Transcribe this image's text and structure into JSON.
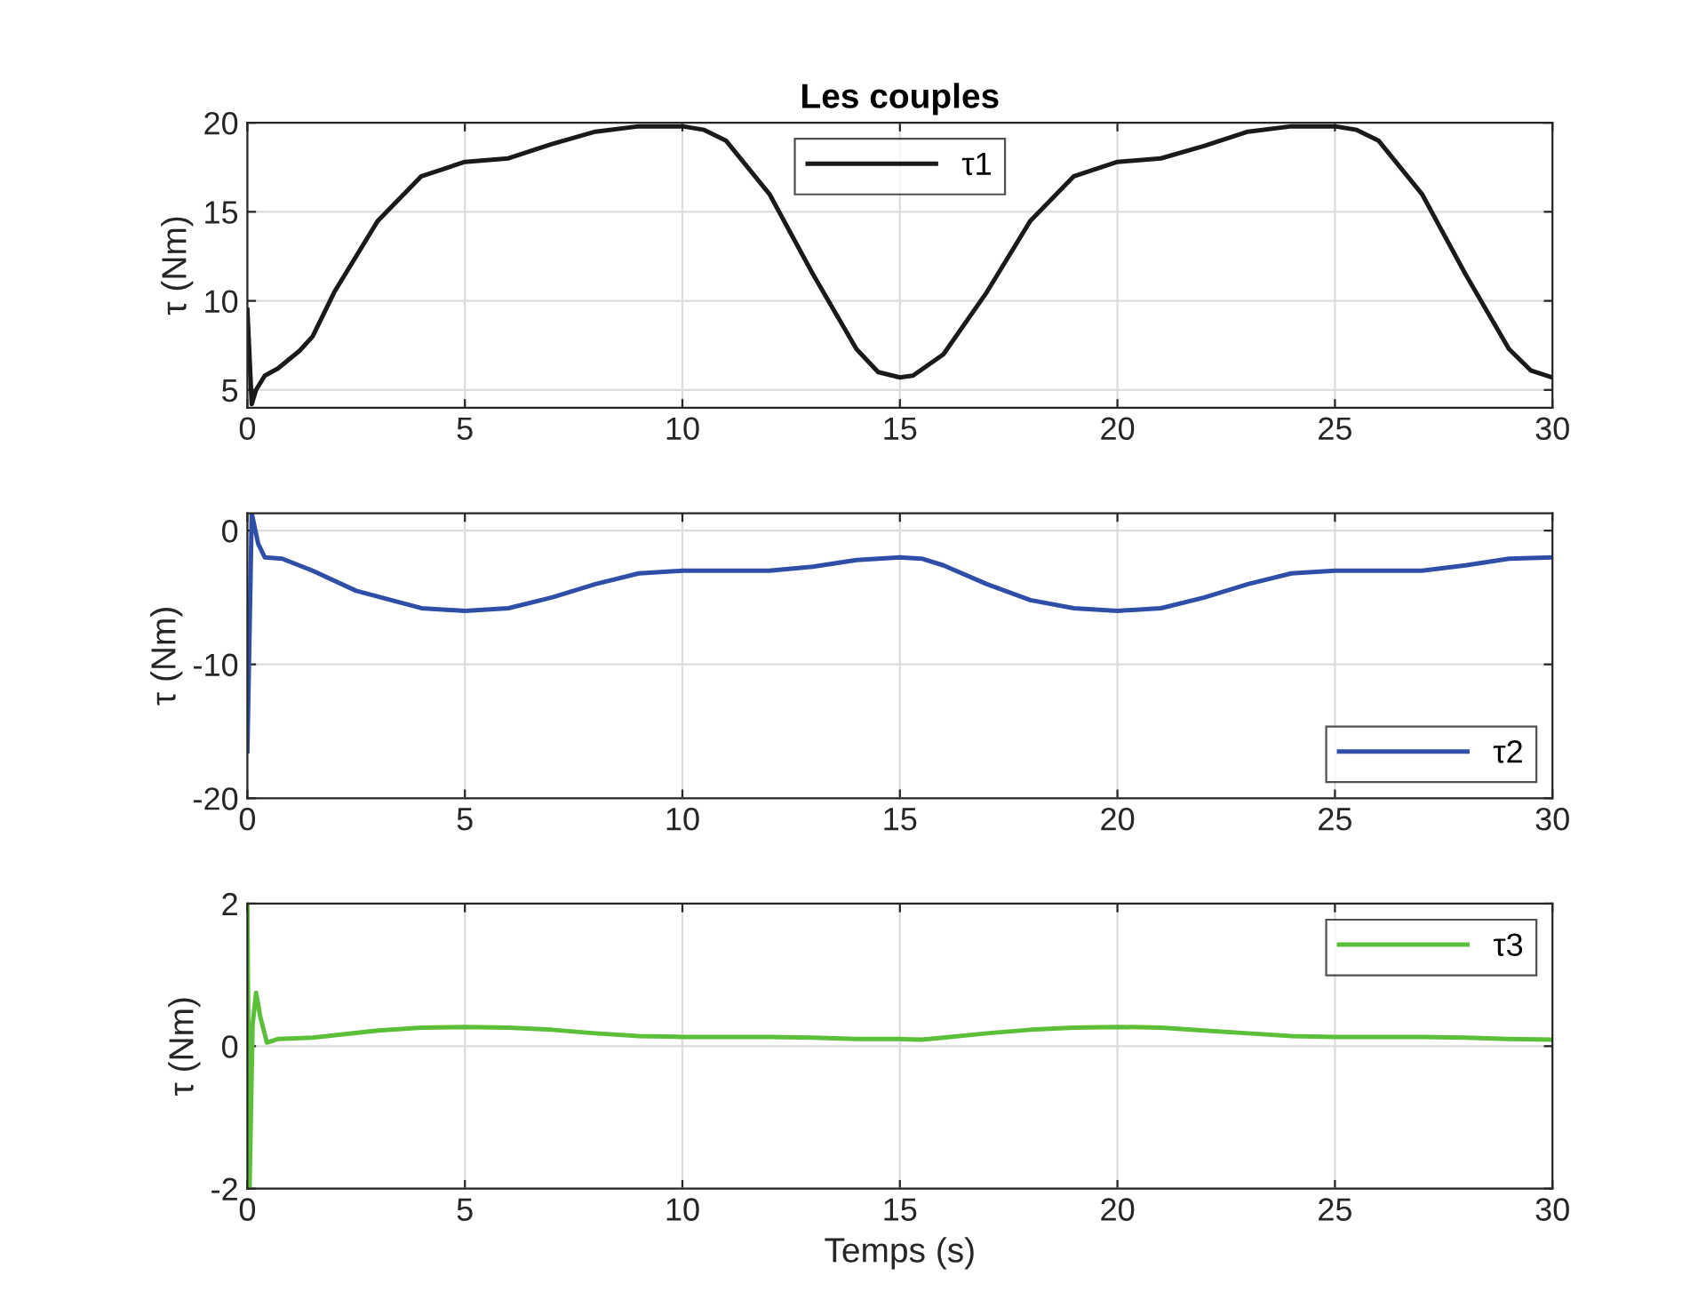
{
  "chart_data": [
    {
      "type": "line",
      "title": "Les couples",
      "ylabel": "τ (Nm)",
      "xlim": [
        0,
        30
      ],
      "xticks": [
        0,
        5,
        10,
        15,
        20,
        25,
        30
      ],
      "ylim": [
        4,
        20
      ],
      "yticks": [
        5,
        10,
        15,
        20
      ],
      "grid": true,
      "legend": "upper center",
      "series": [
        {
          "name": "τ1",
          "color": "#1a1a1a",
          "x": [
            0,
            0.1,
            0.2,
            0.4,
            0.7,
            1.2,
            1.5,
            2,
            3,
            4,
            5,
            6,
            7,
            8,
            9,
            10,
            10.5,
            11,
            12,
            13,
            14,
            14.5,
            15,
            15.3,
            16,
            17,
            18,
            19,
            20,
            21,
            22,
            23,
            24,
            25,
            25.5,
            26,
            27,
            28,
            29,
            29.5,
            30
          ],
          "values": [
            9.5,
            4.2,
            5,
            5.8,
            6.2,
            7.2,
            8,
            10.5,
            14.5,
            17,
            17.8,
            18,
            18.8,
            19.5,
            19.8,
            19.8,
            19.6,
            19,
            16,
            11.5,
            7.3,
            6,
            5.7,
            5.8,
            7,
            10.5,
            14.5,
            17,
            17.8,
            18,
            18.7,
            19.5,
            19.8,
            19.8,
            19.6,
            19,
            16,
            11.5,
            7.3,
            6.1,
            5.7
          ]
        }
      ]
    },
    {
      "type": "line",
      "ylabel": "τ (Nm)",
      "xlim": [
        0,
        30
      ],
      "xticks": [
        0,
        5,
        10,
        15,
        20,
        25,
        30
      ],
      "ylim": [
        -20,
        1.3
      ],
      "yticks": [
        -20,
        -10,
        0
      ],
      "grid": true,
      "legend": "lower right",
      "series": [
        {
          "name": "τ2",
          "color": "#2e4ea8",
          "x": [
            0,
            0.1,
            0.25,
            0.4,
            0.8,
            1.5,
            2.5,
            4,
            5,
            6,
            7,
            8,
            9,
            10,
            12,
            13,
            14,
            15,
            15.5,
            16,
            17,
            18,
            19,
            20,
            21,
            22,
            23,
            24,
            25,
            27,
            28,
            29,
            30
          ],
          "values": [
            -16.5,
            1.3,
            -1,
            -2,
            -2.1,
            -3,
            -4.5,
            -5.8,
            -6,
            -5.8,
            -5,
            -4,
            -3.2,
            -3,
            -3,
            -2.7,
            -2.2,
            -2,
            -2.1,
            -2.6,
            -4,
            -5.2,
            -5.8,
            -6,
            -5.8,
            -5,
            -4,
            -3.2,
            -3,
            -3,
            -2.6,
            -2.1,
            -2
          ]
        }
      ]
    },
    {
      "type": "line",
      "ylabel": "τ (Nm)",
      "xlabel": "Temps (s)",
      "xlim": [
        0,
        30
      ],
      "xticks": [
        0,
        5,
        10,
        15,
        20,
        25,
        30
      ],
      "ylim": [
        -2,
        2
      ],
      "yticks": [
        -2,
        0,
        2
      ],
      "grid": true,
      "legend": "upper right",
      "series": [
        {
          "name": "τ3",
          "color": "#5cbf3a",
          "x": [
            0,
            0.05,
            0.12,
            0.2,
            0.3,
            0.45,
            0.7,
            1.5,
            3,
            4,
            5,
            6,
            7,
            8,
            9,
            10,
            12,
            13,
            14,
            15,
            15.5,
            16,
            17,
            18,
            19,
            20,
            21,
            22,
            23,
            24,
            25,
            27,
            28,
            29,
            30
          ],
          "values": [
            2,
            -2,
            0.3,
            0.75,
            0.4,
            0.05,
            0.1,
            0.12,
            0.22,
            0.26,
            0.27,
            0.26,
            0.23,
            0.18,
            0.14,
            0.13,
            0.13,
            0.12,
            0.1,
            0.1,
            0.09,
            0.12,
            0.18,
            0.23,
            0.26,
            0.27,
            0.26,
            0.22,
            0.18,
            0.14,
            0.13,
            0.13,
            0.12,
            0.1,
            0.09
          ]
        }
      ]
    }
  ]
}
